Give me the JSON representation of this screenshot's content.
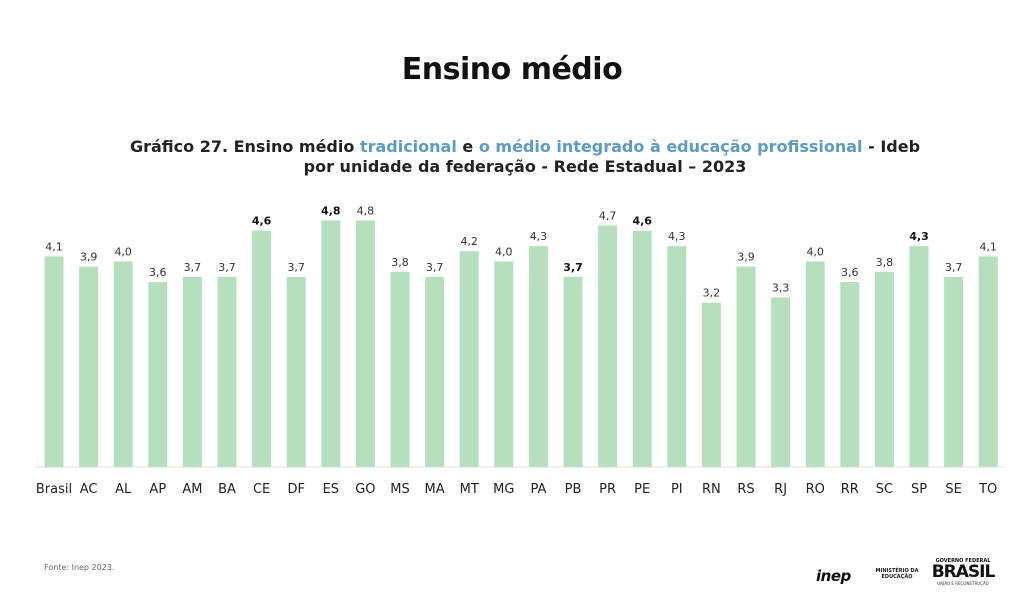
{
  "page": {
    "title": "Ensino médio",
    "source": "Fonte: Inep 2023."
  },
  "subtitle": {
    "part1": "Gráfico 27. Ensino médio ",
    "hl1": "tradicional",
    "part2": " e ",
    "hl2": "o médio integrado à educação profissional",
    "part3": " - Ideb por unidade da federação - Rede Estadual – 2023"
  },
  "logos": {
    "inep": "inep",
    "ministry": "MINISTÉRIO DA EDUCAÇÃO",
    "gov_top": "GOVERNO FEDERAL",
    "gov_main": "BRASIL",
    "gov_bottom": "UNIÃO E RECONSTRUÇÃO"
  },
  "colors": {
    "bar": "#b6dfbd",
    "highlight": "#5b9bc6"
  },
  "chart_data": {
    "type": "bar",
    "categories": [
      "Brasil",
      "AC",
      "AL",
      "AP",
      "AM",
      "BA",
      "CE",
      "DF",
      "ES",
      "GO",
      "MS",
      "MA",
      "MT",
      "MG",
      "PA",
      "PB",
      "PR",
      "PE",
      "PI",
      "RN",
      "RS",
      "RJ",
      "RO",
      "RR",
      "SC",
      "SP",
      "SE",
      "TO"
    ],
    "labels": [
      "4,1",
      "3,9",
      "4,0",
      "3,6",
      "3,7",
      "3,7",
      "4,6",
      "3,7",
      "4,8",
      "4,8",
      "3,8",
      "3,7",
      "4,2",
      "4,0",
      "4,3",
      "3,7",
      "4,7",
      "4,6",
      "4,3",
      "3,2",
      "3,9",
      "3,3",
      "4,0",
      "3,6",
      "3,8",
      "4,3",
      "3,7",
      "4,1"
    ],
    "values": [
      4.1,
      3.9,
      4.0,
      3.6,
      3.7,
      3.7,
      4.6,
      3.7,
      4.8,
      4.8,
      3.8,
      3.7,
      4.2,
      4.0,
      4.3,
      3.7,
      4.7,
      4.6,
      4.3,
      3.2,
      3.9,
      3.3,
      4.0,
      3.6,
      3.8,
      4.3,
      3.7,
      4.1
    ],
    "bold_labels": [
      "CE",
      "ES",
      "PB",
      "PE",
      "SP"
    ],
    "ylim": [
      0,
      5.1
    ],
    "grid": false,
    "legend": "none"
  }
}
